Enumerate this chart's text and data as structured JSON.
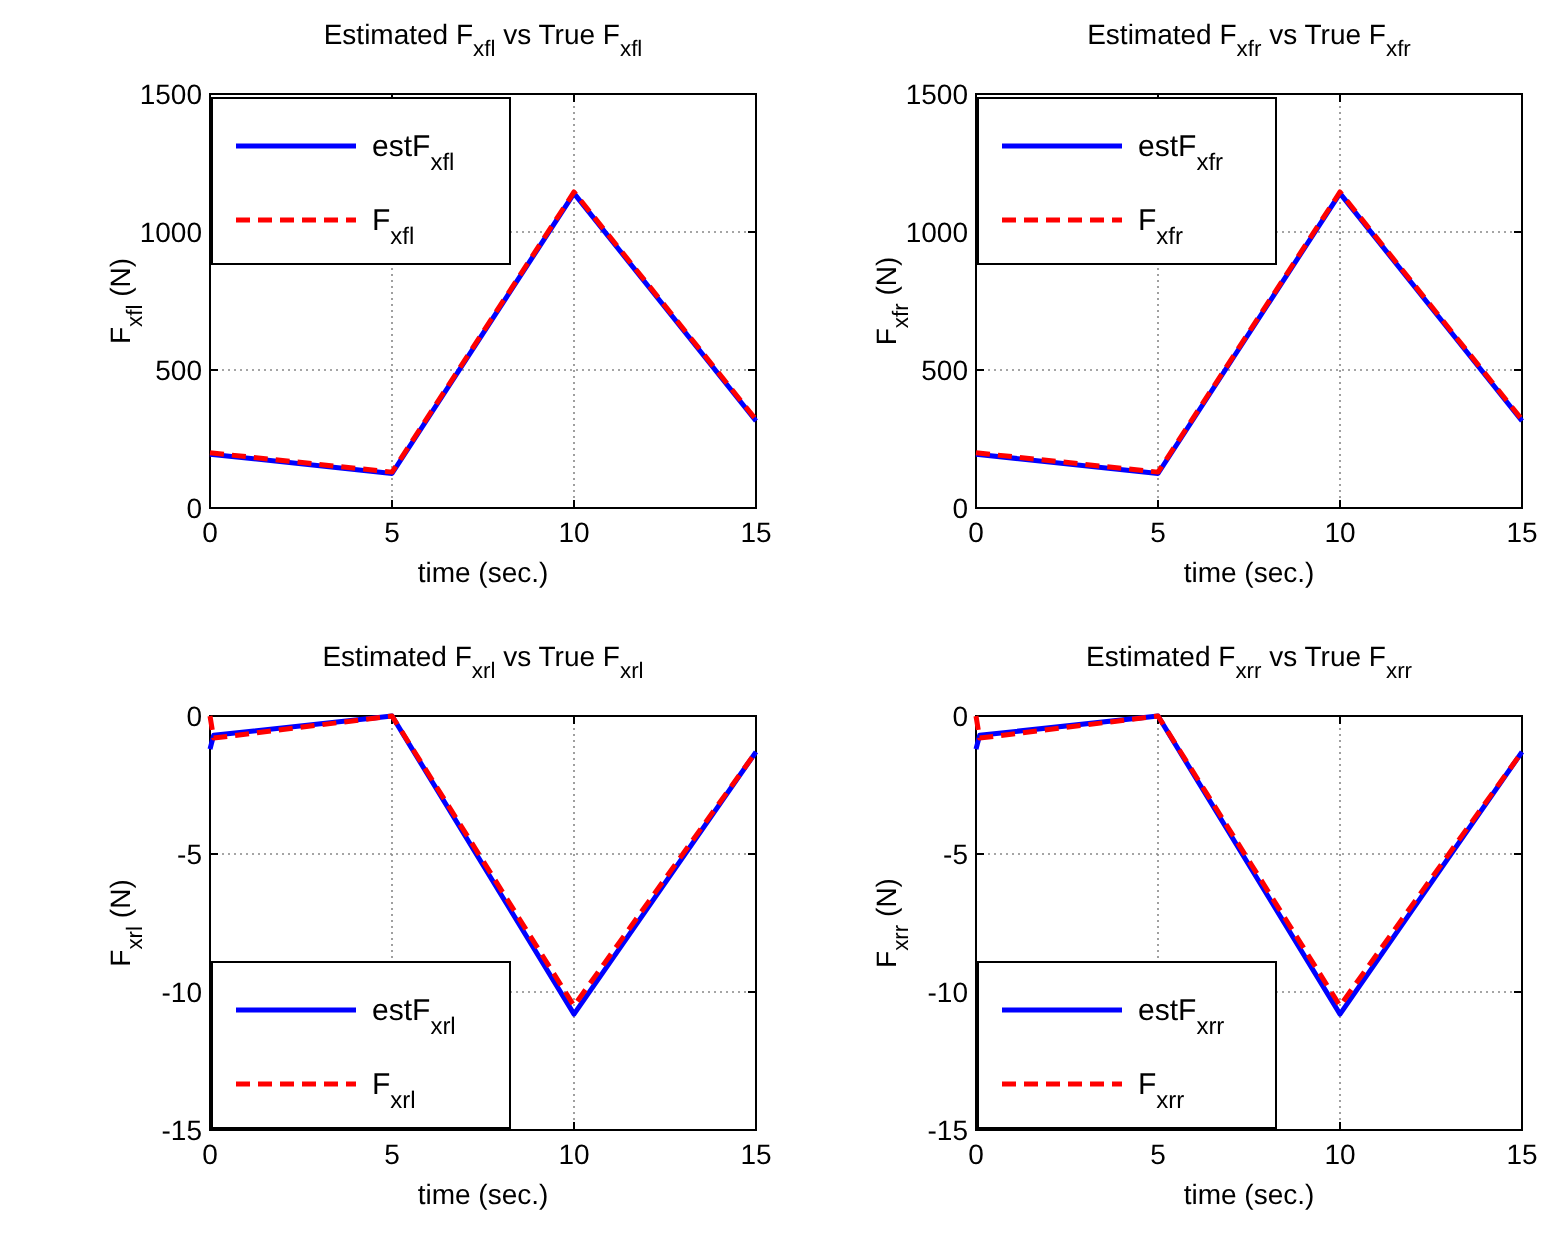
{
  "chart_data": [
    {
      "type": "line",
      "title": "Estimated F$_{xfl}$ vs True F$_{xfl}$",
      "xlabel": "time (sec.)",
      "ylabel": "F$_{xfl}$ (N)",
      "xlim": [
        0,
        15
      ],
      "ylim": [
        0,
        1500
      ],
      "xticks": [
        0,
        5,
        10,
        15
      ],
      "yticks": [
        0,
        500,
        1000,
        1500
      ],
      "grid": true,
      "legend": "top left",
      "series": [
        {
          "name": "estF$_{xfl}$",
          "color": "#0000ff",
          "line_style": "solid",
          "x": [
            0,
            5,
            10,
            15
          ],
          "values": [
            195,
            125,
            1140,
            315
          ]
        },
        {
          "name": "F$_{xfl}$",
          "color": "#ff0000",
          "line_style": "dashed",
          "x": [
            0,
            5,
            10,
            15
          ],
          "values": [
            200,
            130,
            1145,
            320
          ]
        }
      ]
    },
    {
      "type": "line",
      "title": "Estimated F$_{xfr}$ vs True F$_{xfr}$",
      "xlabel": "time (sec.)",
      "ylabel": "F$_{xfr}$ (N)",
      "xlim": [
        0,
        15
      ],
      "ylim": [
        0,
        1500
      ],
      "xticks": [
        0,
        5,
        10,
        15
      ],
      "yticks": [
        0,
        500,
        1000,
        1500
      ],
      "grid": true,
      "legend": "top left",
      "series": [
        {
          "name": "estF$_{xfr}$",
          "color": "#0000ff",
          "line_style": "solid",
          "x": [
            0,
            5,
            10,
            15
          ],
          "values": [
            195,
            125,
            1140,
            315
          ]
        },
        {
          "name": "F$_{xfr}$",
          "color": "#ff0000",
          "line_style": "dashed",
          "x": [
            0,
            5,
            10,
            15
          ],
          "values": [
            200,
            130,
            1145,
            320
          ]
        }
      ]
    },
    {
      "type": "line",
      "title": "Estimated F$_{xrl}$ vs True F$_{xrl}$",
      "xlabel": "time (sec.)",
      "ylabel": "F$_{xrl}$ (N)",
      "xlim": [
        0,
        15
      ],
      "ylim": [
        -15,
        0
      ],
      "xticks": [
        0,
        5,
        10,
        15
      ],
      "yticks": [
        -15,
        -10,
        -5,
        0
      ],
      "grid": true,
      "legend": "bottom left",
      "series": [
        {
          "name": "estF$_{xrl}$",
          "color": "#0000ff",
          "line_style": "solid",
          "x": [
            0,
            0.1,
            5,
            10,
            15
          ],
          "values": [
            -1.2,
            -0.7,
            0,
            -10.8,
            -1.3
          ]
        },
        {
          "name": "F$_{xrl}$",
          "color": "#ff0000",
          "line_style": "dashed",
          "x": [
            0,
            0.1,
            5,
            10,
            15
          ],
          "values": [
            0,
            -0.8,
            0,
            -10.5,
            -1.3
          ]
        }
      ]
    },
    {
      "type": "line",
      "title": "Estimated F$_{xrr}$ vs True F$_{xrr}$",
      "xlabel": "time (sec.)",
      "ylabel": "F$_{xrr}$ (N)",
      "xlim": [
        0,
        15
      ],
      "ylim": [
        -15,
        0
      ],
      "xticks": [
        0,
        5,
        10,
        15
      ],
      "yticks": [
        -15,
        -10,
        -5,
        0
      ],
      "grid": true,
      "legend": "bottom left",
      "series": [
        {
          "name": "estF$_{xrr}$",
          "color": "#0000ff",
          "line_style": "solid",
          "x": [
            0,
            0.1,
            5,
            10,
            15
          ],
          "values": [
            -1.2,
            -0.7,
            0,
            -10.8,
            -1.3
          ]
        },
        {
          "name": "F$_{xrr}$",
          "color": "#ff0000",
          "line_style": "dashed",
          "x": [
            0,
            0.1,
            5,
            10,
            15
          ],
          "values": [
            0,
            -0.8,
            0,
            -10.5,
            -1.3
          ]
        }
      ]
    }
  ]
}
